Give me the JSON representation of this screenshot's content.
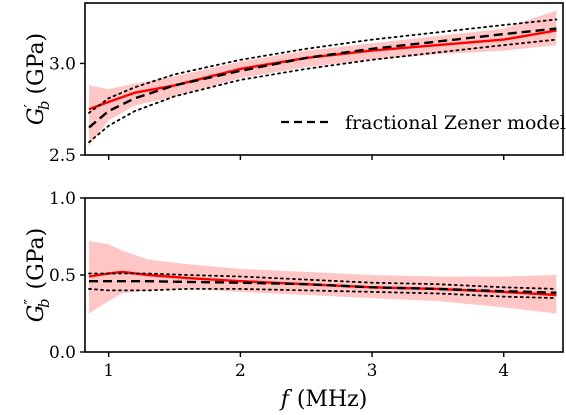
{
  "chart_data": [
    {
      "type": "line",
      "panel": "top",
      "ylabel_symbol": "G",
      "ylabel_sub": "b",
      "ylabel_prime": "′",
      "ylabel_unit": "(GPa)",
      "xlim": [
        0.82,
        4.45
      ],
      "ylim": [
        2.5,
        3.33
      ],
      "yticks": [
        2.5,
        3.0
      ],
      "ytick_labels": [
        "2.5",
        "3.0"
      ],
      "xticks": [
        1,
        2,
        3,
        4
      ],
      "legend": {
        "placement": "lower-right",
        "entries": [
          {
            "label": "fractional Zener model",
            "style": "dashed",
            "color": "#000000"
          }
        ]
      },
      "x": [
        0.85,
        1.0,
        1.2,
        1.5,
        2.0,
        2.5,
        3.0,
        3.5,
        4.0,
        4.4
      ],
      "series": [
        {
          "role": "measured-mean",
          "color": "#ff0000",
          "style": "solid",
          "values": [
            2.75,
            2.79,
            2.84,
            2.88,
            2.97,
            3.03,
            3.07,
            3.1,
            3.13,
            3.18
          ]
        },
        {
          "name": "fractional Zener model",
          "color": "#000000",
          "style": "dashed",
          "values": [
            2.65,
            2.74,
            2.81,
            2.88,
            2.96,
            3.03,
            3.08,
            3.12,
            3.16,
            3.19
          ]
        },
        {
          "role": "model-upper",
          "color": "#000000",
          "style": "dotted",
          "values": [
            2.73,
            2.81,
            2.87,
            2.94,
            3.02,
            3.08,
            3.13,
            3.17,
            3.21,
            3.24
          ]
        },
        {
          "role": "model-lower",
          "color": "#000000",
          "style": "dotted",
          "values": [
            2.57,
            2.66,
            2.74,
            2.82,
            2.91,
            2.97,
            3.02,
            3.06,
            3.1,
            3.13
          ]
        }
      ],
      "band": {
        "color": "#ffb3b3",
        "upper": [
          2.88,
          2.86,
          2.89,
          2.93,
          3.01,
          3.07,
          3.11,
          3.15,
          3.19,
          3.29
        ],
        "lower": [
          2.55,
          2.69,
          2.77,
          2.82,
          2.92,
          2.98,
          3.02,
          3.05,
          3.07,
          3.1
        ]
      }
    },
    {
      "type": "line",
      "panel": "bottom",
      "ylabel_symbol": "G",
      "ylabel_sub": "b",
      "ylabel_prime": "″",
      "ylabel_unit": "(GPa)",
      "xlabel_symbol": "f",
      "xlabel_unit": "(MHz)",
      "xlim": [
        0.82,
        4.45
      ],
      "ylim": [
        0.0,
        1.0
      ],
      "yticks": [
        0.0,
        0.5,
        1.0
      ],
      "ytick_labels": [
        "0.0",
        "0.5",
        "1.0"
      ],
      "xticks": [
        1,
        2,
        3,
        4
      ],
      "xtick_labels": [
        "1",
        "2",
        "3",
        "4"
      ],
      "x": [
        0.85,
        1.0,
        1.1,
        1.3,
        1.6,
        2.0,
        2.5,
        3.0,
        3.5,
        4.0,
        4.4
      ],
      "series": [
        {
          "role": "measured-mean",
          "color": "#ff0000",
          "style": "solid",
          "values": [
            0.49,
            0.51,
            0.52,
            0.5,
            0.48,
            0.46,
            0.44,
            0.42,
            0.41,
            0.39,
            0.37
          ]
        },
        {
          "name": "fractional Zener model",
          "color": "#000000",
          "style": "dashed",
          "values": [
            0.46,
            0.46,
            0.46,
            0.46,
            0.455,
            0.45,
            0.44,
            0.42,
            0.41,
            0.395,
            0.385
          ]
        },
        {
          "role": "model-upper",
          "color": "#000000",
          "style": "dotted",
          "values": [
            0.51,
            0.51,
            0.51,
            0.51,
            0.5,
            0.49,
            0.47,
            0.45,
            0.44,
            0.42,
            0.41
          ]
        },
        {
          "role": "model-lower",
          "color": "#000000",
          "style": "dotted",
          "values": [
            0.41,
            0.4,
            0.4,
            0.4,
            0.41,
            0.41,
            0.4,
            0.39,
            0.38,
            0.36,
            0.35
          ]
        }
      ],
      "band": {
        "color": "#ffb3b3",
        "upper": [
          0.72,
          0.7,
          0.66,
          0.6,
          0.57,
          0.54,
          0.52,
          0.5,
          0.49,
          0.49,
          0.5
        ],
        "lower": [
          0.25,
          0.33,
          0.38,
          0.4,
          0.41,
          0.39,
          0.37,
          0.35,
          0.33,
          0.29,
          0.25
        ]
      }
    }
  ]
}
